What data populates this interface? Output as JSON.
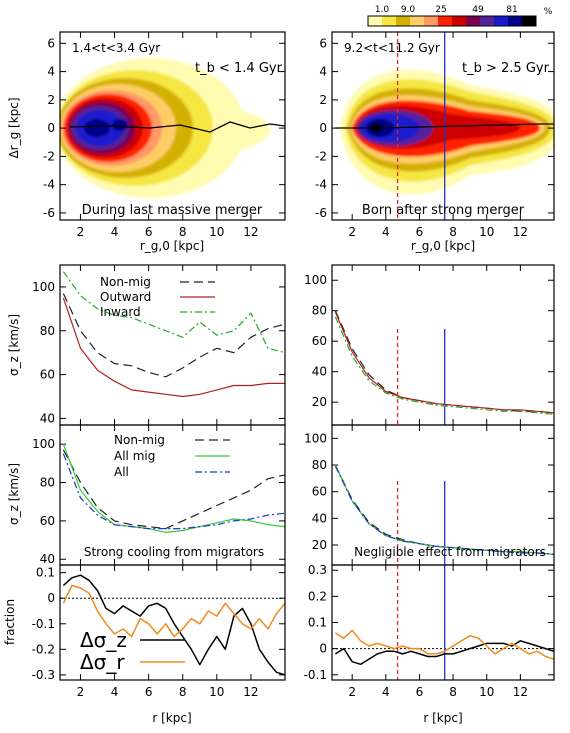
{
  "colorbar": {
    "ticks": [
      "1.0",
      "9.0",
      "25",
      "49",
      "81"
    ],
    "unit": "%",
    "colors": [
      "#fffbb0",
      "#f5e642",
      "#d4b000",
      "#ffcc66",
      "#ff9966",
      "#ff2200",
      "#cc0000",
      "#7a0050",
      "#552299",
      "#1a1acc",
      "#000088",
      "#000000"
    ]
  },
  "panels": {
    "a": {
      "range_label": "1.4<t<3.4 Gyr",
      "tb_label": "t_b < 1.4 Gyr",
      "caption": "During last massive merger"
    },
    "b": {
      "range_label": "9.2<t<11.2 Gyr",
      "tb_label": "t_b > 2.5 Gyr",
      "caption": "Born after strong merger"
    },
    "e": {
      "caption": "Strong cooling from migrators"
    },
    "f": {
      "caption": "Negligible effect from migrators"
    }
  },
  "axes": {
    "delta_rg": "Δr_g [kpc]",
    "rg0": "r_g,0 [kpc]",
    "sigma_z": "σ_z [km/s]",
    "fraction": "fraction",
    "r": "r [kpc]"
  },
  "chart_data": [
    {
      "id": "a",
      "type": "heatmap",
      "xlabel": "r_g,0 [kpc]",
      "ylabel": "Δr_g [kpc]",
      "xlim": [
        0.8,
        14
      ],
      "ylim": [
        -6.5,
        6.8
      ],
      "xticks": [
        2,
        4,
        6,
        8,
        10,
        12
      ],
      "yticks": [
        -6,
        -4,
        -2,
        0,
        2,
        4,
        6
      ],
      "annotations": [
        "1.4<t<3.4 Gyr",
        "t_b < 1.4 Gyr",
        "During last massive merger"
      ],
      "color_levels_percent": [
        1.0,
        9.0,
        25,
        49,
        81
      ]
    },
    {
      "id": "b",
      "type": "heatmap",
      "xlabel": "r_g,0 [kpc]",
      "ylabel": "",
      "xlim": [
        0.8,
        14
      ],
      "ylim": [
        -6.5,
        6.8
      ],
      "xticks": [
        2,
        4,
        6,
        8,
        10,
        12
      ],
      "yticks": [
        -6,
        -4,
        -2,
        0,
        2,
        4,
        6
      ],
      "vlines": [
        {
          "x": 4.7,
          "style": "dashed",
          "color": "#e8202a"
        },
        {
          "x": 7.5,
          "style": "solid",
          "color": "#2233cc"
        }
      ],
      "annotations": [
        "9.2<t<11.2 Gyr",
        "t_b > 2.5 Gyr",
        "Born after strong merger"
      ],
      "color_levels_percent": [
        1.0,
        9.0,
        25,
        49,
        81
      ]
    },
    {
      "id": "c",
      "type": "line",
      "ylabel": "σ_z [km/s]",
      "xlim": [
        0.8,
        14
      ],
      "ylim": [
        37,
        110
      ],
      "xticks": [
        2,
        4,
        6,
        8,
        10,
        12
      ],
      "yticks": [
        40,
        60,
        80,
        100
      ],
      "legend": "top-left",
      "x": [
        1,
        2,
        3,
        4,
        5,
        6,
        7,
        8,
        9,
        10,
        11,
        12,
        13,
        14
      ],
      "series": [
        {
          "name": "Non-mig",
          "style": "longdash",
          "color": "#222222",
          "values": [
            97,
            80,
            70,
            65,
            64,
            61,
            59,
            63,
            68,
            72,
            70,
            77,
            81,
            83
          ]
        },
        {
          "name": "Outward",
          "style": "solid",
          "color": "#b02020",
          "values": [
            95,
            72,
            62,
            57,
            53,
            52,
            51,
            50,
            51,
            53,
            55,
            55,
            56,
            56
          ]
        },
        {
          "name": "Inward",
          "style": "dashdot",
          "color": "#22aa22",
          "values": [
            107,
            96,
            90,
            87,
            86,
            83,
            80,
            77,
            84,
            78,
            80,
            88,
            72,
            70
          ]
        }
      ]
    },
    {
      "id": "d",
      "type": "line",
      "ylabel": "",
      "xlim": [
        0.8,
        14
      ],
      "ylim": [
        5,
        110
      ],
      "xticks": [
        2,
        4,
        6,
        8,
        10,
        12
      ],
      "yticks": [
        20,
        40,
        60,
        80,
        100
      ],
      "vlines": [
        {
          "x": 4.7,
          "y_to": 68,
          "style": "dashed",
          "color": "#e8202a"
        },
        {
          "x": 7.5,
          "y_to": 68,
          "style": "solid",
          "color": "#2233cc"
        }
      ],
      "x": [
        1,
        2,
        3,
        4,
        5,
        6,
        7,
        8,
        9,
        10,
        11,
        12,
        13,
        14
      ],
      "series": [
        {
          "style": "longdash",
          "color": "#222222",
          "values": [
            80,
            55,
            38,
            28,
            23,
            21,
            19,
            18,
            17,
            16,
            15,
            14,
            14,
            13
          ]
        },
        {
          "style": "solid",
          "color": "#b02020",
          "values": [
            79,
            53,
            36,
            27,
            23,
            21,
            19,
            18,
            17,
            16,
            15,
            15,
            14,
            13
          ]
        },
        {
          "style": "dashdot",
          "color": "#22aa22",
          "values": [
            76,
            50,
            34,
            26,
            22,
            20,
            18,
            17,
            16,
            15,
            14,
            14,
            13,
            12
          ]
        }
      ]
    },
    {
      "id": "e",
      "type": "line",
      "ylabel": "σ_z [km/s]",
      "xlim": [
        0.8,
        14
      ],
      "ylim": [
        37,
        110
      ],
      "xticks": [
        2,
        4,
        6,
        8,
        10,
        12
      ],
      "yticks": [
        40,
        60,
        80,
        100
      ],
      "legend": "top-center",
      "annotations": [
        "Strong cooling from migrators"
      ],
      "x": [
        1,
        2,
        3,
        4,
        5,
        6,
        7,
        8,
        9,
        10,
        11,
        12,
        13,
        14
      ],
      "series": [
        {
          "name": "Non-mig",
          "style": "longdash",
          "color": "#222222",
          "values": [
            97,
            80,
            67,
            60,
            58,
            57,
            56,
            60,
            64,
            68,
            72,
            76,
            82,
            84
          ]
        },
        {
          "name": "All mig",
          "style": "solid",
          "color": "#33cc33",
          "values": [
            100,
            76,
            65,
            58,
            57,
            56,
            54,
            55,
            57,
            59,
            61,
            60,
            58,
            57
          ]
        },
        {
          "name": "All",
          "style": "dashdot",
          "color": "#2233cc",
          "values": [
            95,
            72,
            63,
            58,
            57,
            56,
            56,
            56,
            57,
            58,
            60,
            61,
            63,
            64
          ]
        }
      ]
    },
    {
      "id": "f",
      "type": "line",
      "ylabel": "",
      "xlim": [
        0.8,
        14
      ],
      "ylim": [
        5,
        110
      ],
      "xticks": [
        2,
        4,
        6,
        8,
        10,
        12
      ],
      "yticks": [
        20,
        40,
        60,
        80,
        100
      ],
      "vlines": [
        {
          "x": 4.7,
          "y_to": 68,
          "style": "dashed",
          "color": "#e8202a"
        },
        {
          "x": 7.5,
          "y_to": 68,
          "style": "solid",
          "color": "#2233cc"
        }
      ],
      "annotations": [
        "Negligible effect from migrators"
      ],
      "x": [
        1,
        2,
        3,
        4,
        5,
        6,
        7,
        8,
        9,
        10,
        11,
        12,
        13,
        14
      ],
      "series": [
        {
          "style": "longdash",
          "color": "#222222",
          "values": [
            80,
            54,
            37,
            28,
            24,
            21,
            19,
            18,
            17,
            16,
            15,
            15,
            14,
            13
          ]
        },
        {
          "style": "solid",
          "color": "#33cc33",
          "values": [
            80,
            53,
            36,
            27,
            23,
            21,
            19,
            18,
            17,
            16,
            15,
            15,
            14,
            13
          ]
        },
        {
          "style": "dashdot",
          "color": "#2233cc",
          "values": [
            79,
            53,
            36,
            27,
            23,
            21,
            19,
            18,
            17,
            16,
            15,
            14,
            14,
            13
          ]
        }
      ]
    },
    {
      "id": "g",
      "type": "line",
      "xlabel": "r [kpc]",
      "ylabel": "fraction",
      "xlim": [
        0.8,
        14
      ],
      "ylim": [
        -0.32,
        0.13
      ],
      "xticks": [
        2,
        4,
        6,
        8,
        10,
        12
      ],
      "yticks": [
        -0.3,
        -0.2,
        -0.1,
        0.0,
        0.1
      ],
      "hline": {
        "y": 0,
        "style": "dotted"
      },
      "legend": "bottom-left",
      "x": [
        1,
        1.5,
        2,
        2.5,
        3,
        3.5,
        4,
        4.5,
        5,
        5.5,
        6,
        6.5,
        7,
        7.5,
        8,
        8.5,
        9,
        9.5,
        10,
        10.5,
        11,
        11.5,
        12,
        12.5,
        13,
        13.5,
        14
      ],
      "series": [
        {
          "name": "Δσ_z",
          "style": "solid",
          "color": "#000000",
          "values": [
            0.05,
            0.08,
            0.09,
            0.07,
            0.03,
            -0.04,
            -0.06,
            -0.03,
            -0.05,
            -0.07,
            -0.03,
            -0.02,
            -0.04,
            -0.1,
            -0.15,
            -0.2,
            -0.26,
            -0.2,
            -0.15,
            -0.2,
            -0.07,
            -0.04,
            -0.1,
            -0.2,
            -0.25,
            -0.29,
            -0.3
          ]
        },
        {
          "name": "Δσ_r",
          "style": "solid",
          "color": "#f08c1e",
          "values": [
            -0.02,
            0.05,
            0.04,
            0.02,
            -0.05,
            -0.1,
            -0.14,
            -0.12,
            -0.15,
            -0.08,
            -0.1,
            -0.14,
            -0.1,
            -0.15,
            -0.12,
            -0.08,
            -0.1,
            -0.05,
            -0.07,
            -0.02,
            -0.06,
            -0.1,
            -0.12,
            -0.08,
            -0.12,
            -0.06,
            -0.02
          ]
        }
      ]
    },
    {
      "id": "h",
      "type": "line",
      "xlabel": "r [kpc]",
      "ylabel": "",
      "xlim": [
        0.8,
        14
      ],
      "ylim": [
        -0.12,
        0.32
      ],
      "xticks": [
        2,
        4,
        6,
        8,
        10,
        12
      ],
      "yticks": [
        -0.1,
        0.0,
        0.1,
        0.2,
        0.3
      ],
      "hline": {
        "y": 0,
        "style": "dotted"
      },
      "vlines": [
        {
          "x": 4.7,
          "style": "dashed",
          "color": "#e8202a"
        },
        {
          "x": 7.5,
          "style": "solid",
          "color": "#2233cc"
        }
      ],
      "x": [
        1,
        1.5,
        2,
        2.5,
        3,
        3.5,
        4,
        4.5,
        5,
        5.5,
        6,
        6.5,
        7,
        7.5,
        8,
        8.5,
        9,
        9.5,
        10,
        10.5,
        11,
        11.5,
        12,
        12.5,
        13,
        13.5,
        14
      ],
      "series": [
        {
          "style": "solid",
          "color": "#000000",
          "values": [
            -0.02,
            0,
            -0.05,
            -0.06,
            -0.04,
            -0.02,
            -0.01,
            -0.01,
            -0.02,
            -0.01,
            -0.02,
            -0.03,
            -0.03,
            -0.02,
            -0.02,
            -0.01,
            0,
            0.01,
            0.02,
            0.02,
            0.02,
            0.01,
            0.03,
            0.02,
            0.01,
            0,
            -0.01
          ]
        },
        {
          "style": "solid",
          "color": "#f08c1e",
          "values": [
            0.06,
            0.04,
            0.07,
            0.03,
            0.01,
            0.02,
            0.01,
            0,
            0.01,
            0,
            0,
            -0.02,
            -0.02,
            -0.01,
            0.01,
            0.03,
            0.05,
            0.04,
            0.01,
            -0.02,
            0,
            0.02,
            0,
            -0.02,
            -0.01,
            -0.03,
            -0.04
          ]
        }
      ]
    }
  ]
}
